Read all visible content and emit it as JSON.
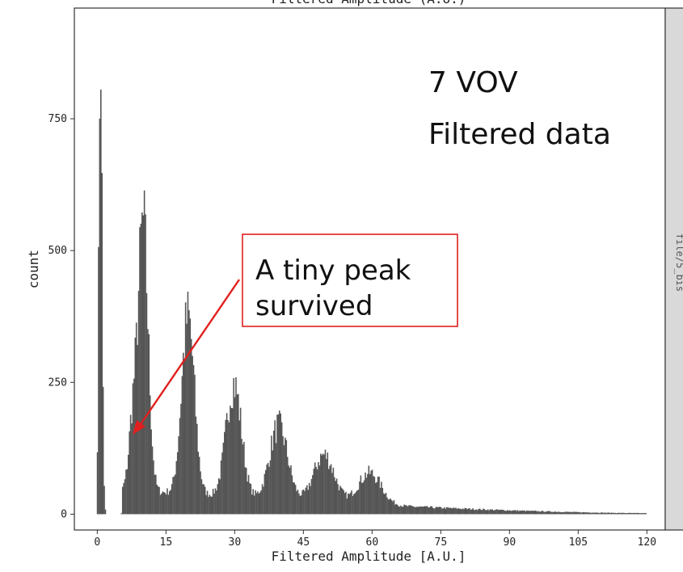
{
  "chart_data": {
    "type": "bar",
    "title": "Filtered Amplitude (A.U.)",
    "xlabel": "Filtered Amplitude [A.U.]",
    "ylabel": "count",
    "xlim": [
      -5,
      124
    ],
    "ylim": [
      -30,
      960
    ],
    "xticks": [
      0,
      15,
      30,
      45,
      60,
      75,
      90,
      105,
      120
    ],
    "yticks": [
      0,
      250,
      500,
      750
    ],
    "grid": false,
    "bin_width": 0.25,
    "peaks": [
      {
        "center": 0.7,
        "height": 920
      },
      {
        "center": 7.7,
        "height": 120
      },
      {
        "center": 10.0,
        "height": 505
      },
      {
        "center": 19.8,
        "height": 335
      },
      {
        "center": 29.8,
        "height": 215
      },
      {
        "center": 39.6,
        "height": 140
      },
      {
        "center": 49.5,
        "height": 90
      },
      {
        "center": 59.5,
        "height": 60
      }
    ],
    "background": {
      "start": 5.5,
      "end": 120,
      "level_at_start": 45,
      "level_at_end": 2
    }
  },
  "annotations": {
    "header": "7 VOV",
    "subheader": "Filtered data",
    "callout": [
      "A tiny peak",
      "survived"
    ]
  },
  "facet_strip": {
    "label": "file/5_bis"
  },
  "colors": {
    "bars": "#555555",
    "panel_bg": "#ffffff",
    "panel_border": "#333333",
    "strip_bg": "#d9d9d9",
    "callout_border": "#e0201e",
    "arrow": "#e0201e"
  }
}
